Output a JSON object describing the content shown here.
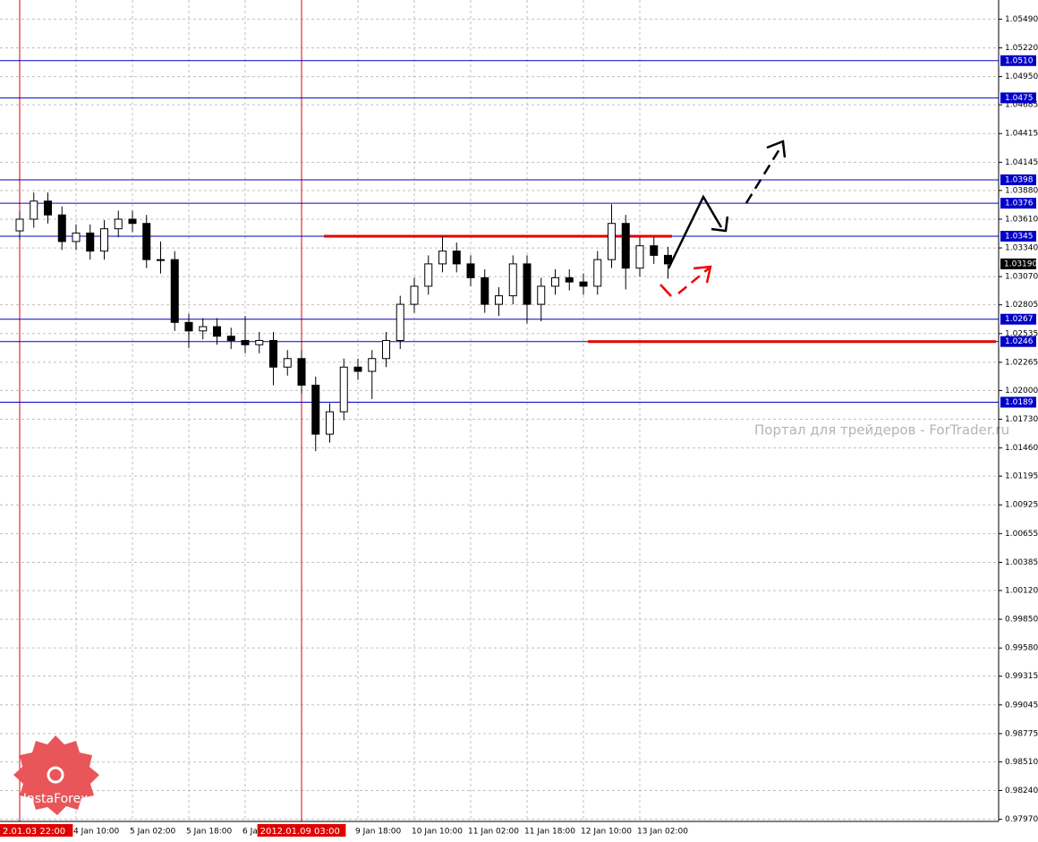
{
  "chart_data": {
    "type": "candlestick",
    "categories": [
      "2.01.03 22:00",
      null,
      null,
      null,
      "4 Jan 10:00",
      null,
      null,
      null,
      "5 Jan 02:00",
      null,
      null,
      null,
      "5 Jan 18:00",
      null,
      null,
      null,
      "6 Jan",
      null,
      null,
      null,
      "2012.01.09 03:00",
      null,
      null,
      null,
      "9 Jan 18:00",
      null,
      null,
      null,
      "10 Jan 10:00",
      null,
      null,
      null,
      "11 Jan 02:00",
      null,
      null,
      null,
      "11 Jan 18:00",
      null,
      null,
      null,
      "12 Jan 10:00",
      null,
      null,
      null,
      "13 Jan 02:00",
      null,
      null
    ],
    "open": [
      1.035,
      1.0361,
      1.0378,
      1.0365,
      1.034,
      1.0348,
      1.0331,
      1.0352,
      1.0361,
      1.0357,
      1.0323,
      1.0323,
      1.0264,
      1.0256,
      1.026,
      1.0251,
      1.0247,
      1.0243,
      1.0247,
      1.0222,
      1.023,
      1.0205,
      1.0159,
      1.018,
      1.0222,
      1.0218,
      1.023,
      1.0247,
      1.0281,
      1.0298,
      1.0319,
      1.0331,
      1.0319,
      1.0306,
      1.0281,
      1.0289,
      1.0319,
      1.0281,
      1.0298,
      1.0306,
      1.0302,
      1.0298,
      1.0323,
      1.0357,
      1.0315,
      1.0336,
      1.0327
    ],
    "high": [
      1.0369,
      1.0386,
      1.0386,
      1.0373,
      1.0356,
      1.0356,
      1.036,
      1.0369,
      1.0369,
      1.0365,
      1.034,
      1.0331,
      1.0272,
      1.0268,
      1.0268,
      1.0259,
      1.027,
      1.0255,
      1.0255,
      1.0238,
      1.0238,
      1.0213,
      1.0188,
      1.023,
      1.023,
      1.0238,
      1.0255,
      1.0289,
      1.0306,
      1.0327,
      1.0345,
      1.0339,
      1.0327,
      1.0314,
      1.0297,
      1.0327,
      1.0327,
      1.0306,
      1.0314,
      1.0314,
      1.031,
      1.0331,
      1.0375,
      1.0365,
      1.0344,
      1.0344,
      1.0335
    ],
    "low": [
      1.0342,
      1.0353,
      1.0357,
      1.0332,
      1.0332,
      1.0323,
      1.0323,
      1.0344,
      1.0349,
      1.0315,
      1.031,
      1.0256,
      1.024,
      1.0248,
      1.0243,
      1.0239,
      1.0235,
      1.0235,
      1.0205,
      1.0214,
      1.0197,
      1.0143,
      1.0151,
      1.0172,
      1.021,
      1.0192,
      1.0222,
      1.0239,
      1.0273,
      1.029,
      1.0311,
      1.0311,
      1.0298,
      1.0273,
      1.027,
      1.0281,
      1.0263,
      1.0265,
      1.029,
      1.0294,
      1.029,
      1.029,
      1.0315,
      1.0295,
      1.0307,
      1.0319,
      1.0305
    ],
    "close": [
      1.0361,
      1.0378,
      1.0365,
      1.034,
      1.0348,
      1.0331,
      1.0352,
      1.0361,
      1.0357,
      1.0323,
      1.0323,
      1.0264,
      1.0256,
      1.026,
      1.0251,
      1.0247,
      1.0243,
      1.0247,
      1.0222,
      1.023,
      1.0205,
      1.0159,
      1.018,
      1.0222,
      1.0218,
      1.023,
      1.0247,
      1.0281,
      1.0298,
      1.0319,
      1.0331,
      1.0319,
      1.0306,
      1.0281,
      1.0289,
      1.0319,
      1.0281,
      1.0298,
      1.0306,
      1.0302,
      1.0298,
      1.0323,
      1.0357,
      1.0315,
      1.0336,
      1.0327,
      1.0319
    ],
    "ylim": [
      0.9795,
      1.0567
    ],
    "yticks": [
      {
        "value": 1.0549,
        "label": "1.05490"
      },
      {
        "value": 1.0522,
        "label": "1.05220"
      },
      {
        "value": 1.0495,
        "label": "1.04950"
      },
      1.04685,
      1.04415,
      1.04145,
      {
        "value": 1.0388,
        "label": "1.03880"
      },
      {
        "value": 1.0361,
        "label": "1.03610"
      },
      {
        "value": 1.0334,
        "label": "1.03340"
      },
      {
        "value": 1.0307,
        "label": "1.03070"
      },
      1.02805,
      1.02535,
      1.02265,
      {
        "value": 1.02,
        "label": "1.02000"
      },
      {
        "value": 1.0173,
        "label": "1.01730"
      },
      {
        "value": 1.0146,
        "label": "1.01460"
      },
      1.01195,
      1.00925,
      1.00655,
      1.00385,
      {
        "value": 1.0012,
        "label": "1.00120"
      },
      {
        "value": 0.9985,
        "label": "0.99850"
      },
      {
        "value": 0.9958,
        "label": "0.99580"
      },
      0.99315,
      0.99045,
      0.98775,
      {
        "value": 0.9851,
        "label": "0.98510"
      },
      {
        "value": 0.9824,
        "label": "0.98240"
      },
      {
        "value": 0.9797,
        "label": "0.97970"
      }
    ],
    "levels": [
      {
        "value": 1.051,
        "label": "1.0510"
      },
      {
        "value": 1.0475,
        "label": "1.0475"
      },
      {
        "value": 1.0398,
        "label": "1.0398"
      },
      {
        "value": 1.0376,
        "label": "1.0376"
      },
      {
        "value": 1.0345,
        "label": "1.0345"
      },
      {
        "value": 1.0267,
        "label": "1.0267"
      },
      {
        "value": 1.0246,
        "label": "1.0246"
      },
      {
        "value": 1.0189,
        "label": "1.0189"
      }
    ],
    "level_color": "#0000c8",
    "current_price": {
      "value": 1.0319,
      "label": "1.03190"
    },
    "grid": true,
    "watermark": "Портал для трейдеров - ForTrader.ru",
    "logo": "InstaForex"
  }
}
